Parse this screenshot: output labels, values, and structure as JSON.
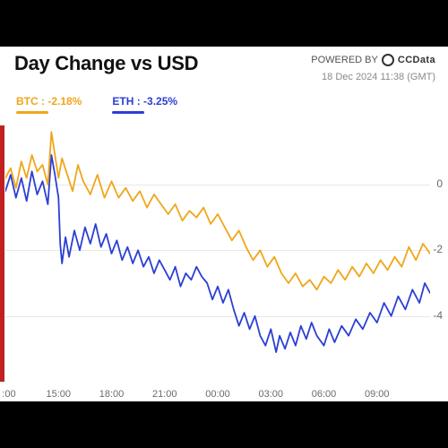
{
  "header": {
    "title": "Day Change vs USD",
    "powered_label": "POWERED BY",
    "brand": "CCData",
    "timestamp": "18 Dec 2024 11:38 (GMT)"
  },
  "legend": {
    "btc": {
      "label": "BTC : -2.18%",
      "color": "#f0a619"
    },
    "eth": {
      "label": "ETH : -3.25%",
      "color": "#2b3fd4"
    }
  },
  "chart": {
    "type": "line",
    "background_color": "#ffffff",
    "grid_color": "#e7e7e7",
    "left_bar_color": "#c02020",
    "x": {
      "min": 0,
      "max": 24,
      "ticks": [
        0.2,
        3,
        6,
        9,
        12,
        15,
        18,
        21,
        24
      ],
      "tick_labels": [
        ":00",
        "15:00",
        "18:00",
        "21:00",
        "00:00",
        "03:00",
        "06:00",
        "09:00",
        ""
      ]
    },
    "y": {
      "min": -6,
      "max": 1.8,
      "ticks": [
        0,
        -2,
        -4
      ],
      "tick_labels": [
        "0",
        "-2",
        "-4"
      ]
    },
    "series": {
      "btc": {
        "color": "#f0a619",
        "line_width": 1.8,
        "points": [
          [
            0.0,
            0.2
          ],
          [
            0.3,
            0.5
          ],
          [
            0.6,
            -0.1
          ],
          [
            0.9,
            0.7
          ],
          [
            1.2,
            0.2
          ],
          [
            1.5,
            0.9
          ],
          [
            1.8,
            0.4
          ],
          [
            2.1,
            0.6
          ],
          [
            2.4,
            0.0
          ],
          [
            2.6,
            1.6
          ],
          [
            2.8,
            0.9
          ],
          [
            3.0,
            0.2
          ],
          [
            3.2,
            0.8
          ],
          [
            3.5,
            0.3
          ],
          [
            3.8,
            -0.2
          ],
          [
            4.1,
            0.6
          ],
          [
            4.4,
            0.1
          ],
          [
            4.8,
            -0.3
          ],
          [
            5.2,
            0.3
          ],
          [
            5.6,
            -0.4
          ],
          [
            6.0,
            0.1
          ],
          [
            6.4,
            -0.4
          ],
          [
            6.8,
            -0.1
          ],
          [
            7.2,
            -0.5
          ],
          [
            7.6,
            -0.2
          ],
          [
            8.0,
            -0.7
          ],
          [
            8.4,
            -0.3
          ],
          [
            8.8,
            -0.6
          ],
          [
            9.2,
            -0.9
          ],
          [
            9.6,
            -0.6
          ],
          [
            10.0,
            -1.1
          ],
          [
            10.4,
            -0.8
          ],
          [
            10.8,
            -1.0
          ],
          [
            11.2,
            -0.7
          ],
          [
            11.6,
            -1.2
          ],
          [
            12.0,
            -0.9
          ],
          [
            12.4,
            -1.3
          ],
          [
            12.8,
            -1.7
          ],
          [
            13.2,
            -1.4
          ],
          [
            13.6,
            -1.9
          ],
          [
            14.0,
            -2.3
          ],
          [
            14.4,
            -2.0
          ],
          [
            14.8,
            -2.5
          ],
          [
            15.2,
            -2.2
          ],
          [
            15.6,
            -2.7
          ],
          [
            16.0,
            -3.0
          ],
          [
            16.4,
            -2.7
          ],
          [
            16.8,
            -3.1
          ],
          [
            17.2,
            -2.9
          ],
          [
            17.6,
            -3.2
          ],
          [
            18.0,
            -2.8
          ],
          [
            18.4,
            -3.0
          ],
          [
            18.8,
            -2.6
          ],
          [
            19.2,
            -2.9
          ],
          [
            19.6,
            -2.5
          ],
          [
            20.0,
            -2.8
          ],
          [
            20.4,
            -2.4
          ],
          [
            20.8,
            -2.7
          ],
          [
            21.2,
            -2.3
          ],
          [
            21.6,
            -2.6
          ],
          [
            22.0,
            -2.2
          ],
          [
            22.4,
            -2.5
          ],
          [
            22.8,
            -1.9
          ],
          [
            23.2,
            -2.3
          ],
          [
            23.6,
            -1.8
          ],
          [
            24.0,
            -2.1
          ]
        ]
      },
      "eth": {
        "color": "#2b3fd4",
        "line_width": 1.8,
        "points": [
          [
            0.0,
            -0.2
          ],
          [
            0.3,
            0.3
          ],
          [
            0.6,
            -0.4
          ],
          [
            0.9,
            0.2
          ],
          [
            1.2,
            -0.5
          ],
          [
            1.5,
            0.4
          ],
          [
            1.8,
            -0.3
          ],
          [
            2.1,
            0.1
          ],
          [
            2.4,
            -0.6
          ],
          [
            2.6,
            0.9
          ],
          [
            2.8,
            0.3
          ],
          [
            3.0,
            -0.4
          ],
          [
            3.1,
            -1.8
          ],
          [
            3.2,
            -2.4
          ],
          [
            3.4,
            -1.6
          ],
          [
            3.6,
            -2.2
          ],
          [
            3.9,
            -1.4
          ],
          [
            4.2,
            -2.0
          ],
          [
            4.5,
            -1.3
          ],
          [
            4.8,
            -1.8
          ],
          [
            5.1,
            -1.2
          ],
          [
            5.4,
            -1.9
          ],
          [
            5.7,
            -1.5
          ],
          [
            6.0,
            -2.1
          ],
          [
            6.3,
            -1.7
          ],
          [
            6.6,
            -2.3
          ],
          [
            6.9,
            -1.9
          ],
          [
            7.2,
            -2.4
          ],
          [
            7.5,
            -2.0
          ],
          [
            7.8,
            -2.5
          ],
          [
            8.1,
            -2.2
          ],
          [
            8.4,
            -2.7
          ],
          [
            8.7,
            -2.3
          ],
          [
            9.0,
            -2.6
          ],
          [
            9.3,
            -2.9
          ],
          [
            9.6,
            -2.5
          ],
          [
            9.9,
            -3.1
          ],
          [
            10.2,
            -2.7
          ],
          [
            10.5,
            -2.9
          ],
          [
            10.8,
            -2.5
          ],
          [
            11.1,
            -2.8
          ],
          [
            11.4,
            -3.0
          ],
          [
            11.7,
            -3.5
          ],
          [
            12.0,
            -3.1
          ],
          [
            12.3,
            -3.6
          ],
          [
            12.6,
            -3.2
          ],
          [
            12.9,
            -3.8
          ],
          [
            13.2,
            -4.3
          ],
          [
            13.5,
            -3.9
          ],
          [
            13.8,
            -4.4
          ],
          [
            14.1,
            -4.0
          ],
          [
            14.4,
            -4.6
          ],
          [
            14.7,
            -4.9
          ],
          [
            15.0,
            -4.4
          ],
          [
            15.3,
            -5.1
          ],
          [
            15.5,
            -4.6
          ],
          [
            15.8,
            -5.0
          ],
          [
            16.1,
            -4.5
          ],
          [
            16.4,
            -4.9
          ],
          [
            16.7,
            -4.3
          ],
          [
            17.0,
            -4.7
          ],
          [
            17.3,
            -4.2
          ],
          [
            17.6,
            -4.6
          ],
          [
            18.0,
            -4.9
          ],
          [
            18.3,
            -4.4
          ],
          [
            18.6,
            -4.8
          ],
          [
            19.0,
            -4.3
          ],
          [
            19.4,
            -4.6
          ],
          [
            19.8,
            -4.1
          ],
          [
            20.2,
            -4.4
          ],
          [
            20.6,
            -3.9
          ],
          [
            21.0,
            -4.2
          ],
          [
            21.4,
            -3.6
          ],
          [
            21.8,
            -4.0
          ],
          [
            22.2,
            -3.4
          ],
          [
            22.6,
            -3.8
          ],
          [
            23.0,
            -3.2
          ],
          [
            23.4,
            -3.6
          ],
          [
            23.7,
            -3.0
          ],
          [
            24.0,
            -3.3
          ]
        ]
      }
    }
  },
  "colors": {
    "title_text": "#111111",
    "meta_text": "#8a8a8a",
    "axis_text": "#6a6a6a"
  }
}
